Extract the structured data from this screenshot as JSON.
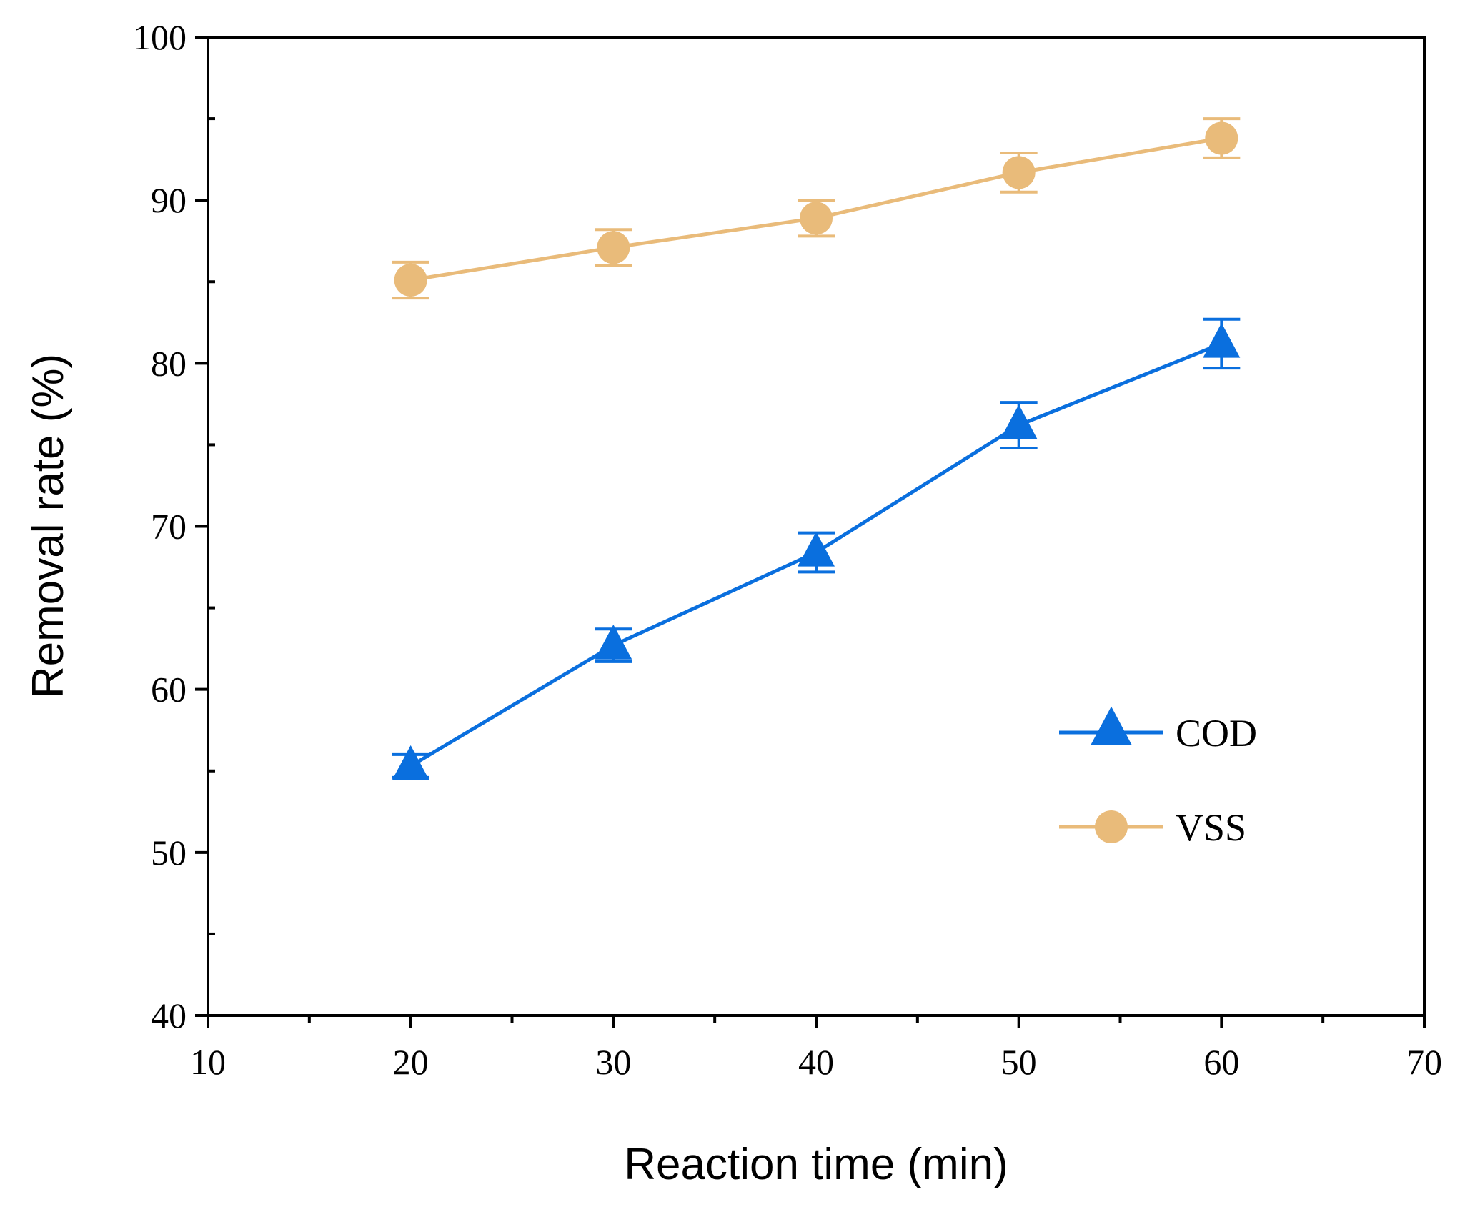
{
  "chart_data": {
    "type": "line",
    "title": "",
    "xlabel": "Reaction time (min)",
    "ylabel": "Removal rate (%)",
    "xlim": [
      10,
      70
    ],
    "ylim": [
      40,
      100
    ],
    "x_major_ticks": [
      10,
      20,
      30,
      40,
      50,
      60,
      70
    ],
    "x_minor_step": 5,
    "y_major_ticks": [
      40,
      50,
      60,
      70,
      80,
      90,
      100
    ],
    "y_minor_step": 5,
    "grid": false,
    "legend_position": "lower-right",
    "x": [
      20,
      30,
      40,
      50,
      60
    ],
    "series": [
      {
        "name": "COD",
        "marker": "triangle",
        "color": "#0a6fde",
        "values": [
          55.3,
          62.7,
          68.4,
          76.2,
          81.2
        ],
        "errors": [
          0.7,
          1.0,
          1.2,
          1.4,
          1.5
        ]
      },
      {
        "name": "VSS",
        "marker": "circle",
        "color": "#e9bb7a",
        "values": [
          85.1,
          87.1,
          88.9,
          91.7,
          93.8
        ],
        "errors": [
          1.1,
          1.1,
          1.1,
          1.2,
          1.2
        ]
      }
    ]
  }
}
